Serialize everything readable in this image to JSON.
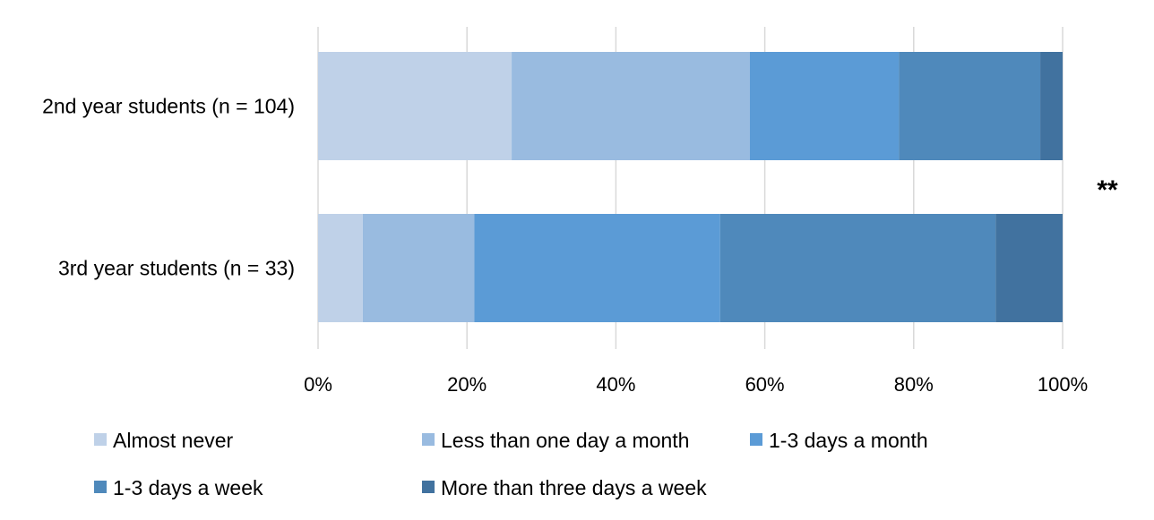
{
  "chart_data": {
    "type": "bar",
    "orientation": "horizontal",
    "stacked": true,
    "percent": true,
    "categories": [
      "2nd year students (n = 104)",
      "3rd year students (n = 33)"
    ],
    "series": [
      {
        "name": "Almost never",
        "color": "#bfd1e8",
        "values": [
          26,
          6
        ]
      },
      {
        "name": "Less than one day a month",
        "color": "#99bbe0",
        "values": [
          32,
          15
        ]
      },
      {
        "name": "1-3 days a month",
        "color": "#5b9bd6",
        "values": [
          20,
          33
        ]
      },
      {
        "name": "1-3 days a week",
        "color": "#4f89bb",
        "values": [
          19,
          37
        ]
      },
      {
        "name": "More than three days a week",
        "color": "#41729f",
        "values": [
          3,
          9
        ]
      }
    ],
    "xlim": [
      0,
      100
    ],
    "xticks": [
      "0%",
      "20%",
      "40%",
      "60%",
      "80%",
      "100%"
    ],
    "grid": true,
    "annotation": "**",
    "legend_position": "bottom"
  }
}
